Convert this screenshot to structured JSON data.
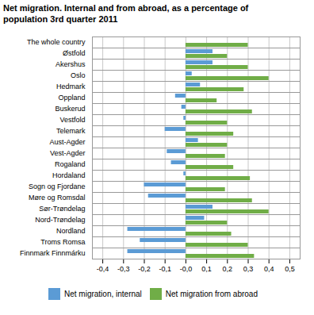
{
  "chart_data": {
    "type": "bar",
    "orientation": "horizontal",
    "title": "Net migration. Internal and from abroad, as a percentage of\npopulation 3rd quarter 2011",
    "categories": [
      "The whole country",
      "Østfold",
      "Akershus",
      "Oslo",
      "Hedmark",
      "Oppland",
      "Buskerud",
      "Vestfold",
      "Telemark",
      "Aust-Agder",
      "Vest-Agder",
      "Rogaland",
      "Hordaland",
      "Sogn og Fjordane",
      "Møre og Romsdal",
      "Sør-Trøndelag",
      "Nord-Trøndelag",
      "Nordland",
      "Troms Romsa",
      "Finnmark Finnmárku"
    ],
    "series": [
      {
        "name": "Net migration, internal",
        "color": "#5b9bd5",
        "values": [
          0.0,
          0.13,
          0.13,
          0.03,
          0.07,
          -0.05,
          -0.02,
          -0.01,
          -0.1,
          0.06,
          -0.09,
          -0.07,
          -0.01,
          -0.2,
          -0.18,
          0.13,
          0.09,
          -0.28,
          -0.22,
          -0.28
        ]
      },
      {
        "name": "Net migration from abroad",
        "color": "#70ad47",
        "values": [
          0.3,
          0.2,
          0.3,
          0.4,
          0.28,
          0.15,
          0.32,
          0.2,
          0.23,
          0.2,
          0.19,
          0.23,
          0.31,
          0.19,
          0.32,
          0.4,
          0.2,
          0.22,
          0.3,
          0.33
        ]
      }
    ],
    "xlim": [
      -0.45,
      0.55
    ],
    "xticks": [
      {
        "value": -0.4,
        "label": "-0,4"
      },
      {
        "value": -0.3,
        "label": "-0,3"
      },
      {
        "value": -0.2,
        "label": "-0,2"
      },
      {
        "value": -0.1,
        "label": "-0,1"
      },
      {
        "value": 0.0,
        "label": "-0,0"
      },
      {
        "value": 0.1,
        "label": "0,1"
      },
      {
        "value": 0.2,
        "label": "0,2"
      },
      {
        "value": 0.3,
        "label": "0,3"
      },
      {
        "value": 0.4,
        "label": "0,4"
      },
      {
        "value": 0.5,
        "label": "0,5"
      }
    ],
    "grid": true,
    "legend": "bottom"
  }
}
